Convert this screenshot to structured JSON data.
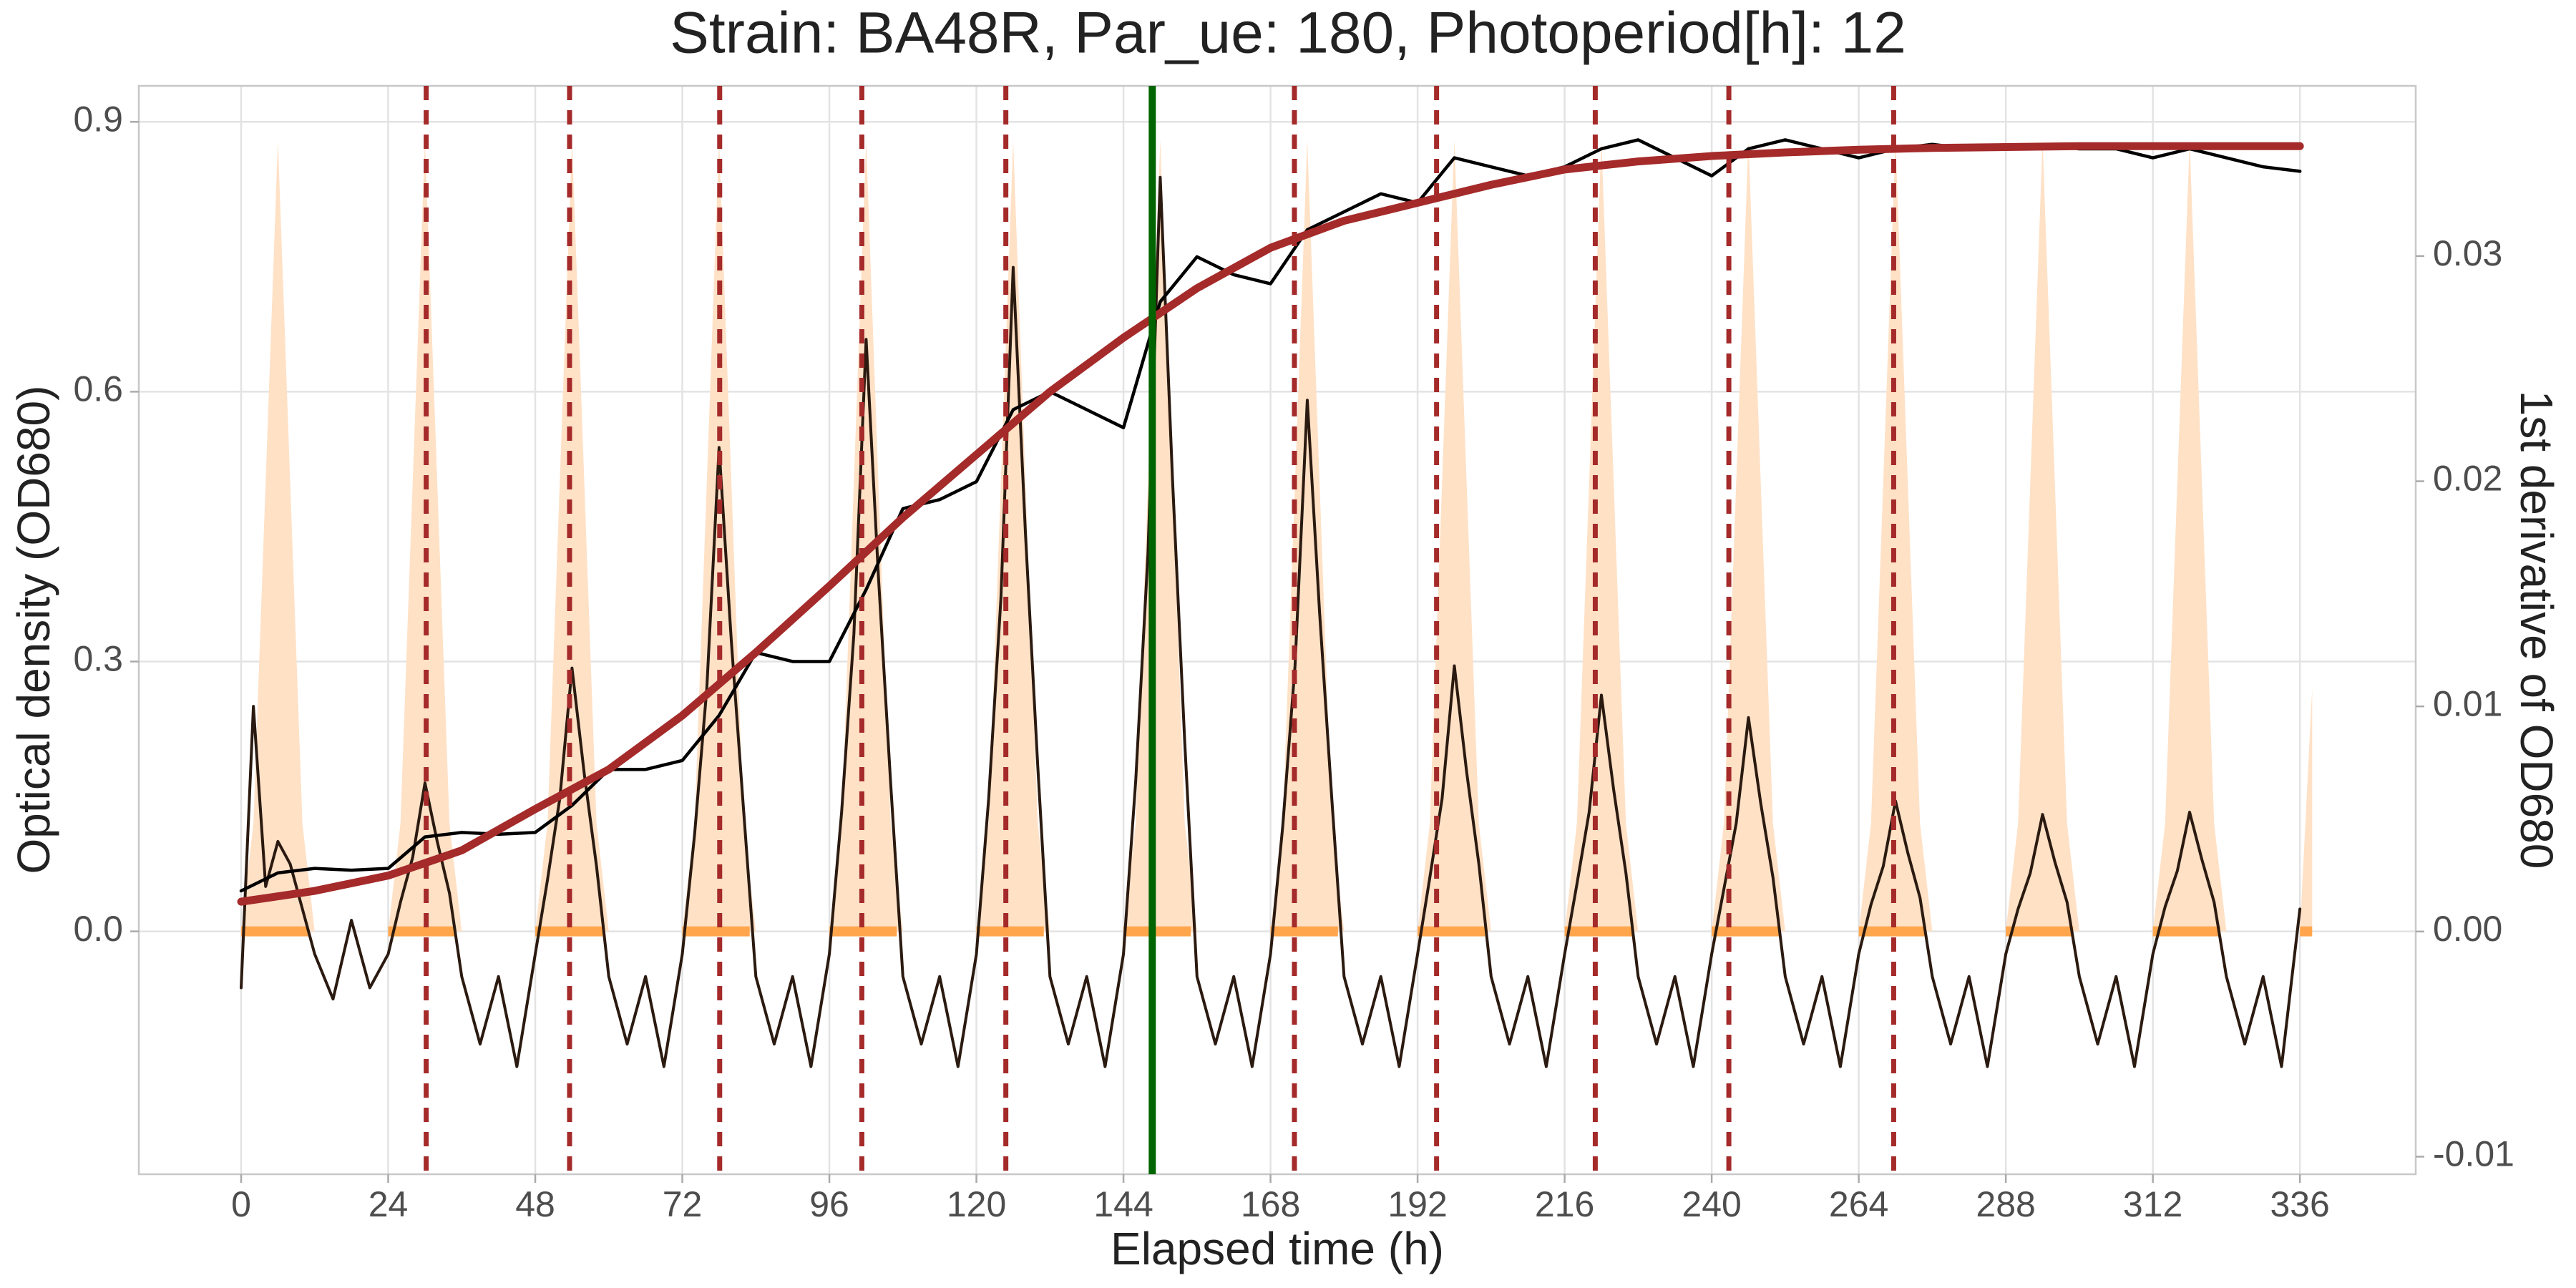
{
  "chart_data": {
    "type": "line",
    "title": "Strain: BA48R, Par_ue: 180,  Photoperiod[h]: 12",
    "xlabel": "Elapsed time (h)",
    "ylabel": "Optical density (OD680)",
    "y2label": "1st derivative of OD680",
    "xlim": [
      -16.7,
      354.9
    ],
    "xticks": [
      0,
      24,
      48,
      72,
      96,
      120,
      144,
      168,
      192,
      216,
      240,
      264,
      288,
      312,
      336
    ],
    "ylim": [
      -0.27,
      0.94
    ],
    "yticks": [
      {
        "value": 0,
        "label": "0.0"
      },
      0.3,
      0.6,
      0.9
    ],
    "y2lim": [
      -0.01078,
      0.03756
    ],
    "y2ticks": [
      -0.01,
      {
        "value": 0,
        "label": "0.00"
      },
      0.01,
      0.02,
      0.03
    ],
    "grid": true,
    "series": [
      {
        "style": "area",
        "axis": "y",
        "color": "#ffe1c6",
        "x": [
          0,
          2,
          4,
          6,
          8,
          10,
          12,
          24,
          26,
          28,
          30,
          32,
          34,
          36,
          48,
          50,
          52,
          54,
          56,
          58,
          60,
          72,
          74,
          76,
          78,
          80,
          82,
          84,
          96,
          98,
          100,
          102,
          104,
          106,
          108,
          120,
          122,
          124,
          126,
          128,
          130,
          132,
          144,
          146,
          148,
          150,
          152,
          154,
          156,
          168,
          170,
          172,
          174,
          176,
          178,
          180,
          192,
          194,
          196,
          198,
          200,
          202,
          204,
          216,
          218,
          220,
          222,
          224,
          226,
          228,
          240,
          242,
          244,
          246,
          248,
          250,
          252,
          264,
          266,
          268,
          270,
          272,
          274,
          276,
          288,
          290,
          292,
          294,
          296,
          298,
          300,
          312,
          314,
          316,
          318,
          320,
          322,
          324,
          336,
          338
        ],
        "values": [
          0,
          0.12,
          0.5,
          0.88,
          0.5,
          0.12,
          0,
          0,
          0.12,
          0.5,
          0.88,
          0.5,
          0.12,
          0,
          0,
          0.12,
          0.5,
          0.88,
          0.5,
          0.12,
          0,
          0,
          0.12,
          0.5,
          0.88,
          0.5,
          0.12,
          0,
          0,
          0.12,
          0.5,
          0.88,
          0.5,
          0.12,
          0,
          0,
          0.12,
          0.5,
          0.88,
          0.5,
          0.12,
          0,
          0,
          0.12,
          0.5,
          0.88,
          0.5,
          0.12,
          0,
          0,
          0.12,
          0.5,
          0.88,
          0.5,
          0.12,
          0,
          0,
          0.12,
          0.5,
          0.88,
          0.5,
          0.12,
          0,
          0,
          0.12,
          0.5,
          0.88,
          0.5,
          0.12,
          0,
          0,
          0.12,
          0.5,
          0.88,
          0.5,
          0.12,
          0,
          0,
          0.12,
          0.5,
          0.88,
          0.5,
          0.12,
          0,
          0,
          0.12,
          0.5,
          0.88,
          0.5,
          0.12,
          0,
          0,
          0.12,
          0.5,
          0.88,
          0.5,
          0.12,
          0,
          0,
          0.27
        ]
      },
      {
        "style": "line",
        "axis": "y2",
        "color": "#2b1a10",
        "width": 4,
        "x": [
          0,
          2,
          4,
          6,
          8,
          10,
          12,
          15,
          18,
          21,
          24,
          26,
          28,
          30,
          32,
          34,
          36,
          39,
          42,
          45,
          48,
          50,
          52,
          54,
          56,
          58,
          60,
          63,
          66,
          69,
          72,
          74,
          76,
          78,
          80,
          82,
          84,
          87,
          90,
          93,
          96,
          98,
          100,
          102,
          104,
          106,
          108,
          111,
          114,
          117,
          120,
          122,
          124,
          126,
          128,
          130,
          132,
          135,
          138,
          141,
          144,
          146,
          148,
          150,
          152,
          154,
          156,
          159,
          162,
          165,
          168,
          170,
          172,
          174,
          176,
          178,
          180,
          183,
          186,
          189,
          192,
          194,
          196,
          198,
          200,
          202,
          204,
          207,
          210,
          213,
          216,
          218,
          220,
          222,
          224,
          226,
          228,
          231,
          234,
          237,
          240,
          242,
          244,
          246,
          248,
          250,
          252,
          255,
          258,
          261,
          264,
          266,
          268,
          270,
          272,
          274,
          276,
          279,
          282,
          285,
          288,
          290,
          292,
          294,
          296,
          298,
          300,
          303,
          306,
          309,
          312,
          314,
          316,
          318,
          320,
          322,
          324,
          327,
          330,
          333,
          336
        ],
        "values": [
          -0.0025,
          0.01,
          0.002,
          0.004,
          0.003,
          0.001,
          -0.001,
          -0.003,
          0.0005,
          -0.0025,
          -0.001,
          0.0013,
          0.0033,
          0.0066,
          0.004,
          0.0017,
          -0.002,
          -0.005,
          -0.002,
          -0.006,
          -0.001,
          0.0023,
          0.0059,
          0.0117,
          0.007,
          0.0029,
          -0.002,
          -0.005,
          -0.002,
          -0.006,
          -0.001,
          0.0043,
          0.0108,
          0.0215,
          0.0129,
          0.0054,
          -0.002,
          -0.005,
          -0.002,
          -0.006,
          -0.001,
          0.0053,
          0.0132,
          0.0263,
          0.0158,
          0.0066,
          -0.002,
          -0.005,
          -0.002,
          -0.006,
          -0.001,
          0.0059,
          0.0148,
          0.0295,
          0.0177,
          0.0074,
          -0.002,
          -0.005,
          -0.002,
          -0.006,
          -0.001,
          0.0067,
          0.0168,
          0.0335,
          0.0201,
          0.0084,
          -0.002,
          -0.005,
          -0.002,
          -0.006,
          -0.001,
          0.0047,
          0.0118,
          0.0236,
          0.0142,
          0.0059,
          -0.002,
          -0.005,
          -0.002,
          -0.006,
          -0.001,
          0.0024,
          0.0059,
          0.0118,
          0.0071,
          0.003,
          -0.002,
          -0.005,
          -0.002,
          -0.006,
          -0.001,
          0.0021,
          0.0053,
          0.0105,
          0.0063,
          0.0026,
          -0.002,
          -0.005,
          -0.002,
          -0.006,
          -0.001,
          0.0019,
          0.0048,
          0.0095,
          0.0057,
          0.0024,
          -0.002,
          -0.005,
          -0.002,
          -0.006,
          -0.001,
          0.0012,
          0.0029,
          0.0058,
          0.0035,
          0.0015,
          -0.002,
          -0.005,
          -0.002,
          -0.006,
          -0.001,
          0.001,
          0.0026,
          0.0052,
          0.0031,
          0.0013,
          -0.002,
          -0.005,
          -0.002,
          -0.006,
          -0.001,
          0.0011,
          0.0027,
          0.0053,
          0.0032,
          0.0013,
          -0.002,
          -0.005,
          -0.002,
          -0.006,
          0.001
        ]
      },
      {
        "style": "line",
        "axis": "y",
        "color": "#000000",
        "width": 4.5,
        "x": [
          0,
          6,
          12,
          18,
          24,
          30,
          36,
          42,
          48,
          54,
          60,
          66,
          72,
          78,
          84,
          90,
          96,
          102,
          108,
          114,
          120,
          126,
          132,
          138,
          144,
          150,
          156,
          162,
          168,
          174,
          180,
          186,
          192,
          198,
          204,
          210,
          216,
          222,
          228,
          234,
          240,
          246,
          252,
          258,
          264,
          270,
          276,
          282,
          288,
          294,
          300,
          306,
          312,
          318,
          324,
          330,
          336
        ],
        "values": [
          0.045,
          0.065,
          0.07,
          0.068,
          0.07,
          0.105,
          0.11,
          0.108,
          0.11,
          0.14,
          0.18,
          0.18,
          0.19,
          0.24,
          0.31,
          0.3,
          0.3,
          0.38,
          0.47,
          0.48,
          0.5,
          0.58,
          0.6,
          0.58,
          0.56,
          0.7,
          0.75,
          0.73,
          0.72,
          0.78,
          0.8,
          0.82,
          0.81,
          0.86,
          0.85,
          0.84,
          0.85,
          0.87,
          0.88,
          0.86,
          0.84,
          0.87,
          0.88,
          0.87,
          0.86,
          0.87,
          0.875,
          0.87,
          0.87,
          0.875,
          0.87,
          0.87,
          0.86,
          0.87,
          0.86,
          0.85,
          0.845
        ]
      },
      {
        "style": "line",
        "axis": "y",
        "color": "#a52a2a",
        "width": 11,
        "x": [
          0,
          12,
          24,
          36,
          48,
          60,
          72,
          84,
          96,
          108,
          120,
          132,
          144,
          156,
          168,
          180,
          192,
          204,
          216,
          228,
          240,
          252,
          264,
          276,
          288,
          300,
          312,
          324,
          336
        ],
        "values": [
          0.033,
          0.045,
          0.062,
          0.09,
          0.136,
          0.18,
          0.24,
          0.31,
          0.384,
          0.46,
          0.53,
          0.6,
          0.66,
          0.715,
          0.76,
          0.79,
          0.81,
          0.83,
          0.847,
          0.856,
          0.862,
          0.866,
          0.869,
          0.871,
          0.872,
          0.873,
          0.873,
          0.873,
          0.873
        ]
      }
    ],
    "light_bars": {
      "color": "#ffa64d",
      "starts": [
        0,
        24,
        48,
        72,
        96,
        120,
        144,
        168,
        192,
        216,
        240,
        264,
        288,
        312,
        336
      ],
      "ends": [
        11,
        35,
        59,
        83,
        107,
        131,
        155,
        179,
        203,
        227,
        251,
        275,
        299,
        323,
        338
      ]
    },
    "peak_times": {
      "color": "#a52a2a",
      "values": [
        30.2,
        53.6,
        78.1,
        101.3,
        124.8,
        148.7,
        171.9,
        195.1,
        221,
        242.8,
        269.7
      ]
    },
    "selected_time": {
      "color": "#006400",
      "value": 148.7
    }
  }
}
